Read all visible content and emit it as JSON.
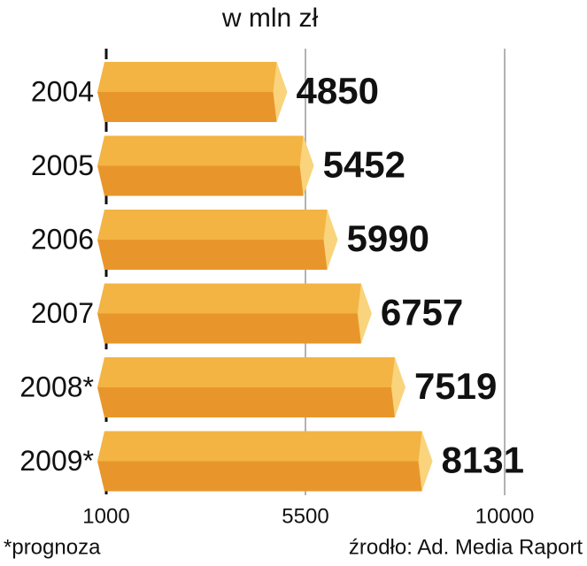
{
  "chart_data": {
    "type": "bar",
    "orientation": "horizontal",
    "title": "w mln zł",
    "categories": [
      "2004",
      "2005",
      "2006",
      "2007",
      "2008*",
      "2009*"
    ],
    "values": [
      4850,
      5452,
      5990,
      6757,
      7519,
      8131
    ],
    "colors": {
      "top": "#f3b443",
      "bottom": "#e8962b",
      "cap": "#f9d47c"
    },
    "xlim": [
      1000,
      10000
    ],
    "xticks": [
      1000,
      5500,
      10000
    ],
    "grid": true,
    "footnote": "*prognoza",
    "source": "źrodło: Ad. Media Raport"
  }
}
